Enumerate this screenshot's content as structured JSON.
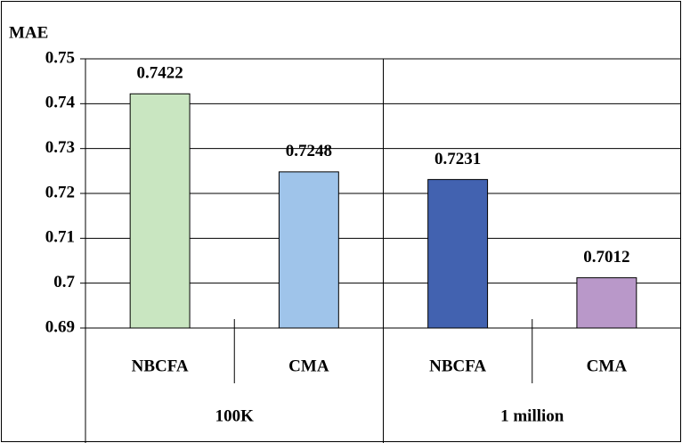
{
  "chart_data": {
    "type": "bar",
    "y_label": "MAE",
    "categories": [
      "NBCFA",
      "CMA",
      "NBCFA",
      "CMA"
    ],
    "groups": [
      "100K",
      "1 million"
    ],
    "values": [
      0.7422,
      0.7248,
      0.7231,
      0.7012
    ],
    "colors": [
      "#c9e6c1",
      "#9fc4ea",
      "#4262b0",
      "#b998c9"
    ],
    "ylim": [
      0.69,
      0.75
    ],
    "yticks": [
      0.69,
      0.7,
      0.71,
      0.72,
      0.73,
      0.74,
      0.75
    ],
    "grid": true
  }
}
